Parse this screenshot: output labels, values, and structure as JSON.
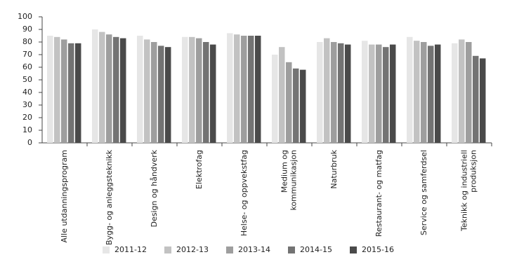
{
  "chart_data": {
    "type": "bar",
    "categories": [
      "Alle utdanningsprogram",
      "Bygg- og anleggsteknikk",
      "Design og håndverk",
      "Elektrofag",
      "Helse- og oppvekstfag",
      "Medium og kommunikasjon",
      "Naturbruk",
      "Restaurant- og matfag",
      "Service og samferdsel",
      "Teknikk og industriell produksjon"
    ],
    "series": [
      {
        "name": "2011-12",
        "color": "#e6e6e6",
        "values": [
          85,
          90,
          85,
          84,
          87,
          70,
          80,
          81,
          84,
          79
        ]
      },
      {
        "name": "2012-13",
        "color": "#c2c2c2",
        "values": [
          84,
          88,
          82,
          84,
          86,
          76,
          83,
          78,
          81,
          82
        ]
      },
      {
        "name": "2013-14",
        "color": "#9e9e9e",
        "values": [
          82,
          86,
          80,
          83,
          85,
          64,
          80,
          78,
          80,
          80
        ]
      },
      {
        "name": "2014-15",
        "color": "#737373",
        "values": [
          79,
          84,
          77,
          80,
          85,
          59,
          79,
          76,
          77,
          69
        ]
      },
      {
        "name": "2015-16",
        "color": "#4a4a4a",
        "values": [
          79,
          83,
          76,
          78,
          85,
          58,
          78,
          78,
          78,
          67
        ]
      }
    ],
    "ylim": [
      0,
      100
    ],
    "yticks": [
      0,
      10,
      20,
      30,
      40,
      50,
      60,
      70,
      80,
      90,
      100
    ],
    "legend": "bottom"
  }
}
